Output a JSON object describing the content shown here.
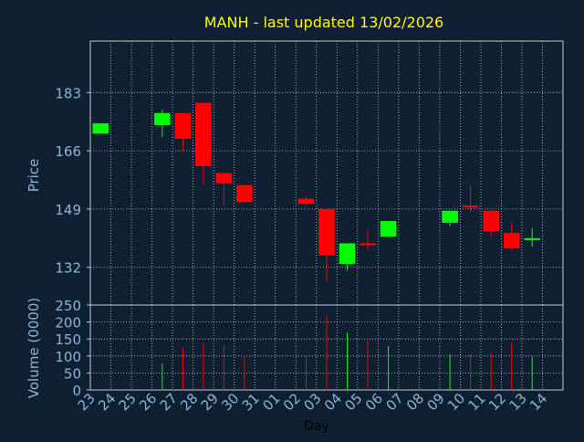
{
  "chart_data": [
    {
      "type": "candlestick",
      "title": "MANH - last updated 13/02/2026",
      "ylabel": "Price",
      "ylim": [
        121,
        198
      ],
      "yticks": [
        132,
        149,
        166,
        183
      ],
      "colors": {
        "background": "#0f2033",
        "title": "#ffff00",
        "axis_text": "#8fb4d6",
        "grid": "#c8c8c8",
        "up": "#00ff00",
        "down": "#ff0000"
      },
      "candles": [
        {
          "day": "23",
          "open": 171,
          "close": 174,
          "high": 174,
          "low": 171
        },
        {
          "day": "26",
          "open": 173.5,
          "close": 177,
          "high": 178,
          "low": 170
        },
        {
          "day": "27",
          "open": 177,
          "close": 169.5,
          "high": 177,
          "low": 166
        },
        {
          "day": "28",
          "open": 180,
          "close": 161.5,
          "high": 180,
          "low": 156
        },
        {
          "day": "29",
          "open": 159.5,
          "close": 156.5,
          "high": 159.5,
          "low": 150
        },
        {
          "day": "30",
          "open": 156,
          "close": 151,
          "high": 156,
          "low": 151
        },
        {
          "day": "02",
          "open": 152,
          "close": 150.5,
          "high": 152.5,
          "low": 150
        },
        {
          "day": "03",
          "open": 149,
          "close": 135.5,
          "high": 149,
          "low": 128
        },
        {
          "day": "04",
          "open": 133,
          "close": 139,
          "high": 139,
          "low": 131
        },
        {
          "day": "05",
          "open": 139,
          "close": 138.5,
          "high": 143,
          "low": 137
        },
        {
          "day": "06",
          "open": 141,
          "close": 145.5,
          "high": 145.5,
          "low": 141
        },
        {
          "day": "09",
          "open": 145,
          "close": 148.5,
          "high": 148.5,
          "low": 144
        },
        {
          "day": "10",
          "open": 150,
          "close": 149.5,
          "high": 156,
          "low": 148
        },
        {
          "day": "11",
          "open": 148.5,
          "close": 142.5,
          "high": 148.5,
          "low": 141
        },
        {
          "day": "12",
          "open": 142,
          "close": 137.5,
          "high": 145,
          "low": 137
        },
        {
          "day": "13",
          "open": 140,
          "close": 140.5,
          "high": 143.5,
          "low": 138
        }
      ]
    },
    {
      "type": "bar",
      "ylabel": "Volume (0000)",
      "xlabel": "Day",
      "ylim": [
        0,
        250
      ],
      "yticks": [
        0,
        50,
        100,
        150,
        200,
        250
      ],
      "x_categories": [
        "23",
        "24",
        "25",
        "26",
        "27",
        "28",
        "29",
        "30",
        "31",
        "01",
        "02",
        "03",
        "04",
        "05",
        "06",
        "07",
        "08",
        "09",
        "10",
        "11",
        "12",
        "13",
        "14"
      ],
      "bars": [
        {
          "day": "26",
          "value": 78,
          "color": "#00ff00"
        },
        {
          "day": "27",
          "value": 125,
          "color": "#ff0000"
        },
        {
          "day": "28",
          "value": 140,
          "color": "#ff0000"
        },
        {
          "day": "29",
          "value": 130,
          "color": "#ff0000"
        },
        {
          "day": "30",
          "value": 100,
          "color": "#ff0000"
        },
        {
          "day": "02",
          "value": 100,
          "color": "#ff0000"
        },
        {
          "day": "03",
          "value": 220,
          "color": "#ff0000"
        },
        {
          "day": "04",
          "value": 170,
          "color": "#00ff00"
        },
        {
          "day": "05",
          "value": 145,
          "color": "#ff0000"
        },
        {
          "day": "06",
          "value": 130,
          "color": "#00ff00"
        },
        {
          "day": "09",
          "value": 105,
          "color": "#00ff00"
        },
        {
          "day": "10",
          "value": 105,
          "color": "#ff0000"
        },
        {
          "day": "11",
          "value": 110,
          "color": "#ff0000"
        },
        {
          "day": "12",
          "value": 140,
          "color": "#ff0000"
        },
        {
          "day": "13",
          "value": 98,
          "color": "#00ff00"
        }
      ]
    }
  ]
}
